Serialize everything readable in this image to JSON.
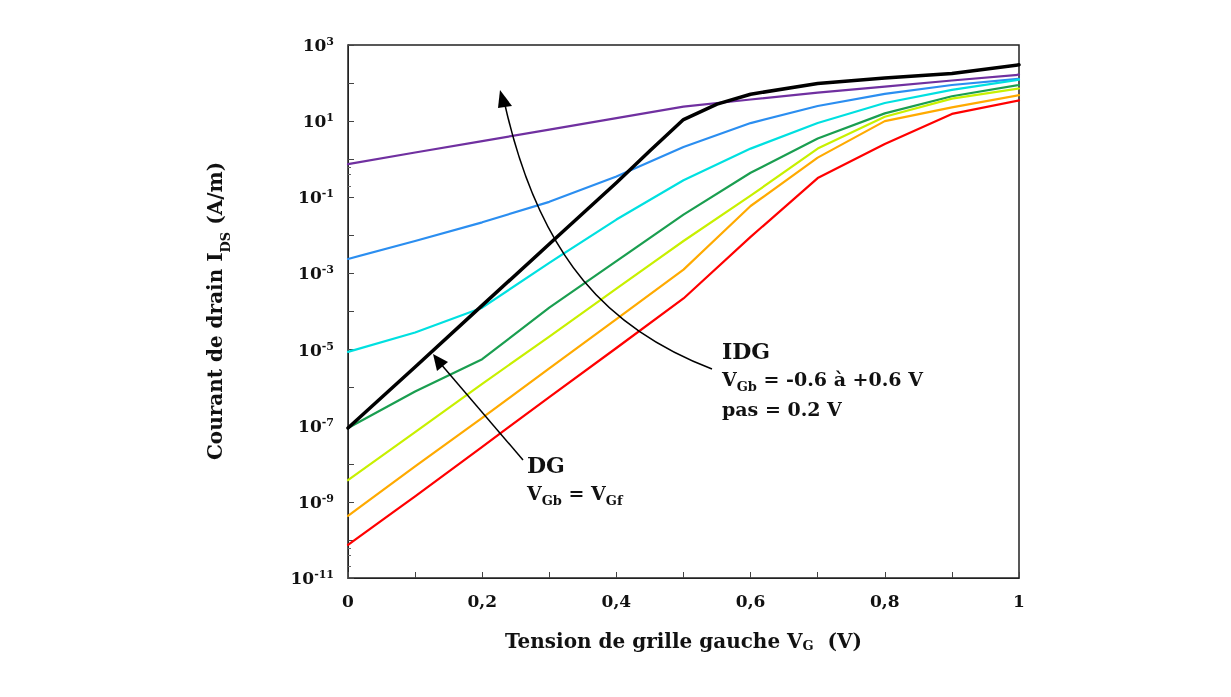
{
  "chart_data": {
    "type": "line",
    "xlabel": "Tension de grille gauche V$_{G}$  (V)",
    "ylabel": "Courant de drain I$_{DS}$ (A/m)",
    "x": [
      0,
      0.1,
      0.2,
      0.3,
      0.4,
      0.5,
      0.6,
      0.7,
      0.8,
      0.9,
      1
    ],
    "series": [
      {
        "color": "#7030a0",
        "values": [
          0.74,
          1.5,
          3.0,
          6.0,
          12,
          24,
          37,
          56,
          81,
          117,
          166
        ]
      },
      {
        "color": "#2b8ef0",
        "values": [
          0.0024,
          0.0071,
          0.022,
          0.076,
          0.35,
          2.1,
          8.9,
          25,
          52,
          89,
          129
        ]
      },
      {
        "color": "#00e0e0",
        "values": [
          8.7e-06,
          2.8e-05,
          0.000126,
          0.0019,
          0.026,
          0.28,
          1.9,
          8.9,
          30,
          66,
          123
        ]
      },
      {
        "color": "#1a9e50",
        "values": [
          8.7e-08,
          7.9e-07,
          5.6e-06,
          0.000126,
          0.0021,
          0.035,
          0.44,
          3.5,
          16,
          45,
          89
        ]
      },
      {
        "color": "#c8f000",
        "values": [
          3.7e-09,
          6.8e-08,
          1.26e-06,
          2.2e-05,
          0.0004,
          0.0071,
          0.11,
          1.9,
          13,
          39,
          72
        ]
      },
      {
        "color": "#ffaa00",
        "values": [
          4.3e-10,
          8.5e-09,
          1.6e-07,
          3.2e-06,
          6.3e-05,
          0.00126,
          0.059,
          1.1,
          10,
          23,
          48
        ]
      },
      {
        "color": "#ff0000",
        "values": [
          7.4e-11,
          1.4e-09,
          2.8e-08,
          5.6e-07,
          1.1e-05,
          0.00022,
          0.0091,
          0.32,
          2.5,
          15.5,
          35
        ]
      },
      {
        "color": "#000000",
        "x": [
          0,
          0.1,
          0.2,
          0.3,
          0.4,
          0.45,
          0.5,
          0.55,
          0.6,
          0.7,
          0.8,
          0.9,
          1
        ],
        "values": [
          8.7e-08,
          3.5e-06,
          0.000145,
          0.0059,
          0.24,
          1.66,
          11,
          28,
          51,
          98,
          135,
          178,
          302
        ]
      }
    ],
    "log": "y",
    "xlim": [
      0,
      1
    ],
    "ylim": [
      1e-11,
      1000
    ],
    "xticks": [
      0,
      {
        "value": 0.1,
        "label": null
      },
      {
        "value": 0.2,
        "label": "0,2"
      },
      {
        "value": 0.3,
        "label": null
      },
      {
        "value": 0.4,
        "label": "0,4"
      },
      {
        "value": 0.5,
        "label": null
      },
      {
        "value": 0.6,
        "label": "0,6"
      },
      {
        "value": 0.7,
        "label": null
      },
      {
        "value": 0.8,
        "label": "0,8"
      },
      {
        "value": 0.9,
        "label": null
      },
      1
    ],
    "yticks": [
      {
        "value": 1e-11,
        "label": "10$^{-11}$"
      },
      {
        "value": 1e-10,
        "label": null
      },
      {
        "value": 1e-09,
        "label": "10$^{-9}$"
      },
      {
        "value": 1e-08,
        "label": null
      },
      {
        "value": 1e-07,
        "label": "10$^{-7}$"
      },
      {
        "value": 1e-06,
        "label": null
      },
      {
        "value": 1e-05,
        "label": "10$^{-5}$"
      },
      {
        "value": 0.0001,
        "label": null
      },
      {
        "value": 0.001,
        "label": "10$^{-3}$"
      },
      {
        "value": 0.01,
        "label": null
      },
      {
        "value": 0.1,
        "label": "10$^{-1}$"
      },
      {
        "value": 1,
        "label": null
      },
      {
        "value": 10,
        "label": "10$^{1}$"
      },
      {
        "value": 100,
        "label": null
      },
      {
        "value": 1000,
        "label": "10$^{3}$"
      }
    ],
    "grid": false,
    "marker": "none",
    "line_style": "solid",
    "annotations": [
      "IDG",
      "V$_{Gb}$ = -0.6 à +0.6 V",
      "pas = 0.2 V",
      "DG",
      "V$_{Gb}$ = V$_{Gf}$"
    ]
  }
}
